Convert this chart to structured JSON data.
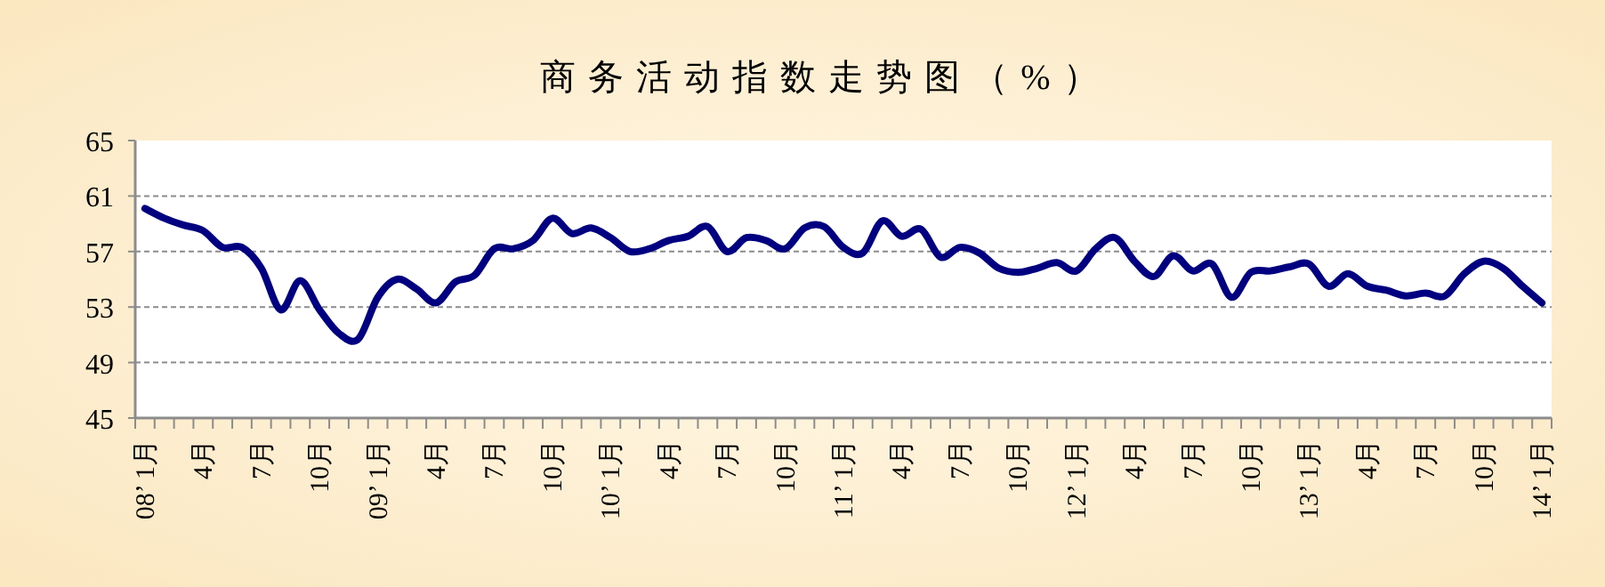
{
  "chart_data": {
    "type": "line",
    "title": "商务活动指数走势图（%）",
    "categories": [
      "08’ 1月",
      null,
      null,
      "4月",
      null,
      null,
      "7月",
      null,
      null,
      "10月",
      null,
      null,
      "09’ 1月",
      null,
      null,
      "4月",
      null,
      null,
      "7月",
      null,
      null,
      "10月",
      null,
      null,
      "10’ 1月",
      null,
      null,
      "4月",
      null,
      null,
      "7月",
      null,
      null,
      "10月",
      null,
      null,
      "11’ 1月",
      null,
      null,
      "4月",
      null,
      null,
      "7月",
      null,
      null,
      "10月",
      null,
      null,
      "12’ 1月",
      null,
      null,
      "4月",
      null,
      null,
      "7月",
      null,
      null,
      "10月",
      null,
      null,
      "13’ 1月",
      null,
      null,
      "4月",
      null,
      null,
      "7月",
      null,
      null,
      "10月",
      null,
      null,
      "14’ 1月"
    ],
    "series": [
      {
        "color": "#000080",
        "values": [
          60.1,
          59.4,
          58.9,
          58.5,
          57.3,
          57.3,
          55.8,
          52.8,
          54.9,
          52.8,
          51.1,
          50.7,
          53.7,
          55.0,
          54.3,
          53.3,
          54.8,
          55.3,
          57.2,
          57.2,
          57.8,
          59.4,
          58.3,
          58.7,
          58.0,
          57.0,
          57.2,
          57.8,
          58.1,
          58.8,
          57.0,
          58.0,
          57.8,
          57.2,
          58.7,
          58.8,
          57.3,
          56.9,
          59.2,
          58.1,
          58.6,
          56.6,
          57.3,
          56.9,
          55.8,
          55.5,
          55.8,
          56.2,
          55.6,
          57.2,
          58.0,
          56.3,
          55.2,
          56.7,
          55.6,
          56.1,
          53.7,
          55.5,
          55.6,
          55.9,
          56.1,
          54.5,
          55.4,
          54.5,
          54.2,
          53.8,
          54.0,
          53.8,
          55.4,
          56.3,
          55.8,
          54.5,
          53.3
        ]
      }
    ],
    "ylim": [
      45,
      65
    ],
    "yticks": [
      45,
      49,
      53,
      57,
      61,
      65
    ],
    "grid": "y",
    "marker": "none",
    "line_style": "solid"
  }
}
